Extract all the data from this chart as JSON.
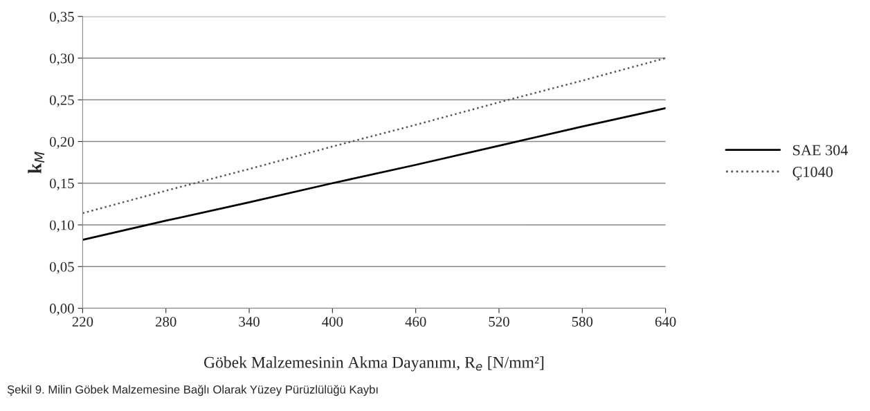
{
  "chart_data": {
    "type": "line",
    "xlabel": "Göbek Malzemesinin Akma Dayanımı, R$_{e}$ [N/mm²]",
    "ylabel": "k$_{M}$",
    "x": [
      220,
      280,
      340,
      400,
      460,
      520,
      580,
      640
    ],
    "series": [
      {
        "name": "SAE 304",
        "color": "#000000",
        "line_style": "solid",
        "values": [
          0.082,
          0.105,
          0.127,
          0.15,
          0.172,
          0.195,
          0.218,
          0.24
        ]
      },
      {
        "name": "Ç1040",
        "color": "#555555",
        "line_style": "dotted",
        "values": [
          0.114,
          0.141,
          0.167,
          0.194,
          0.22,
          0.247,
          0.273,
          0.3
        ]
      }
    ],
    "xlim": [
      220,
      640
    ],
    "xticks": [
      220,
      280,
      340,
      400,
      460,
      520,
      580,
      640
    ],
    "ylim": [
      0,
      0.35
    ],
    "yticks": [
      {
        "value": 0,
        "label": "0,00"
      },
      {
        "value": 0.05,
        "label": "0,05"
      },
      {
        "value": 0.1,
        "label": "0,10"
      },
      {
        "value": 0.15,
        "label": "0,15"
      },
      {
        "value": 0.2,
        "label": "0,20"
      },
      {
        "value": 0.25,
        "label": "0,25"
      },
      {
        "value": 0.3,
        "label": "0,30"
      },
      {
        "value": 0.35,
        "label": "0,35"
      }
    ],
    "grid": "y",
    "legend": "right",
    "marker": "none",
    "annotations": [
      "Şekil 9. Milin Göbek Malzemesine Bağlı Olarak Yüzey Pürüzlülüğü Kaybı"
    ]
  }
}
